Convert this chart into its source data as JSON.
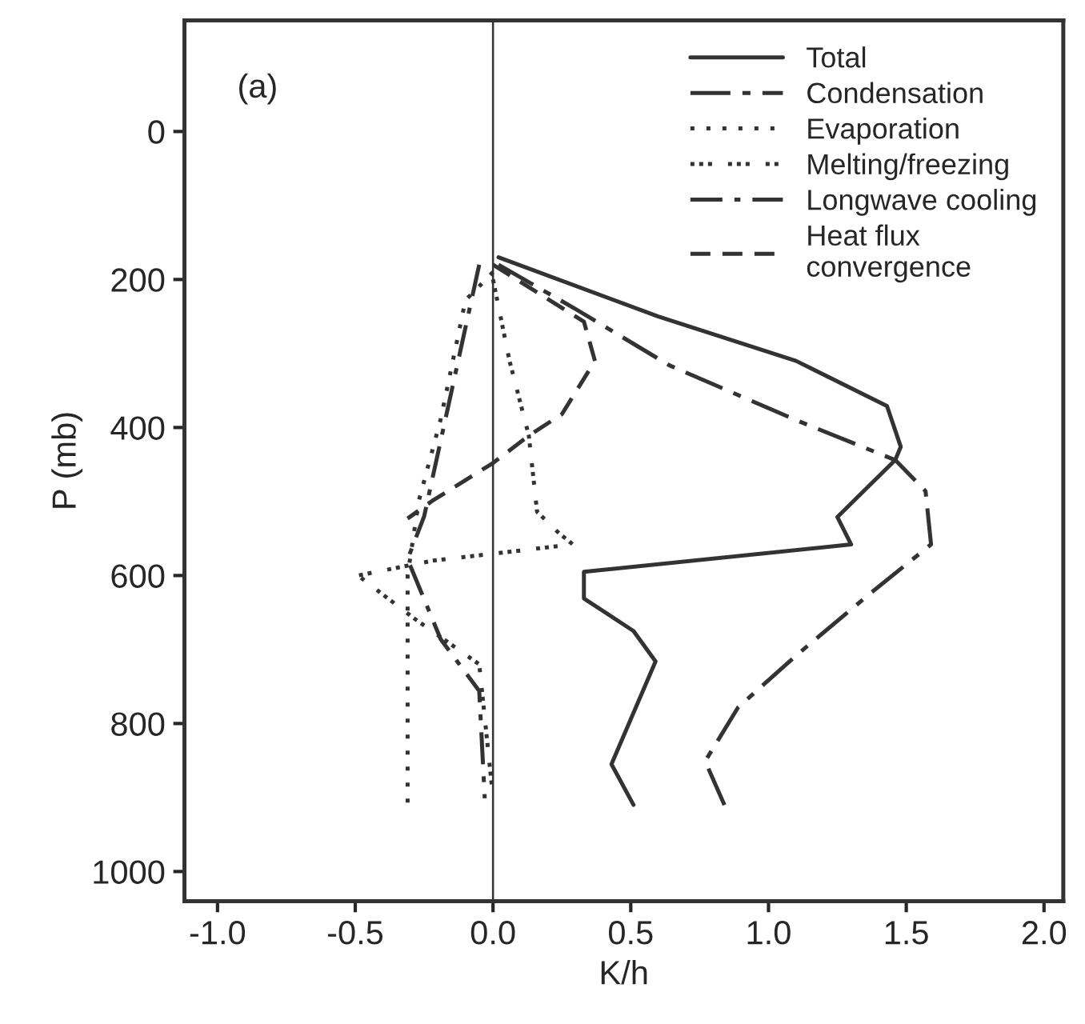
{
  "chart_data": {
    "type": "line",
    "xlabel": "K/h",
    "ylabel": "P (mb)",
    "annotations": [
      "(a)"
    ],
    "xlim": [
      -1.12,
      2.07
    ],
    "ylim": [
      1040,
      -150
    ],
    "xticks": [
      {
        "value": -1.0,
        "label": "-1.0"
      },
      {
        "value": -0.5,
        "label": "-0.5"
      },
      {
        "value": 0.0,
        "label": "0.0"
      },
      {
        "value": 0.5,
        "label": "0.5"
      },
      {
        "value": 1.0,
        "label": "1.0"
      },
      {
        "value": 1.5,
        "label": "1.5"
      },
      {
        "value": 2.0,
        "label": "2.0"
      }
    ],
    "yticks": [
      0,
      200,
      400,
      600,
      800,
      1000
    ],
    "grid": false,
    "legend": "top right",
    "ref_lines": [
      {
        "axis": "x",
        "value": 0,
        "color": "#333333",
        "line_style": "solid"
      }
    ],
    "series": [
      {
        "name": "Total",
        "color": "#333333",
        "line_style": "solid",
        "x": [
          0.02,
          0.6,
          1.1,
          1.43,
          1.48,
          1.46,
          1.25,
          1.3,
          0.33,
          0.33,
          0.51,
          0.59,
          0.43,
          0.51
        ],
        "values": [
          170,
          250,
          310,
          371,
          426,
          444,
          521,
          558,
          595,
          631,
          675,
          716,
          855,
          910
        ]
      },
      {
        "name": "Condensation",
        "color": "#333333",
        "line_style": "longdash",
        "x": [
          0.02,
          0.3,
          0.64,
          1.1,
          1.46,
          1.57,
          1.59,
          1.37,
          1.11,
          0.89,
          0.77,
          0.84
        ],
        "values": [
          180,
          240,
          316,
          390,
          444,
          486,
          558,
          624,
          705,
          778,
          851,
          910
        ]
      },
      {
        "name": "Evaporation",
        "color": "#333333",
        "line_style": "dotted",
        "x": [
          0.0,
          -0.1,
          -0.19,
          -0.27,
          -0.31,
          -0.31
        ],
        "values": [
          190,
          228,
          389,
          500,
          600,
          910
        ]
      },
      {
        "name": "Melting/freezing",
        "color": "#333333",
        "line_style": "densedot",
        "x": [
          0.0,
          0.06,
          0.13,
          0.16,
          0.24,
          0.29,
          -0.22,
          -0.49,
          -0.29,
          -0.05,
          0.0
        ],
        "values": [
          200,
          310,
          411,
          514,
          543,
          558,
          580,
          600,
          657,
          720,
          900
        ]
      },
      {
        "name": "Longwave cooling",
        "color": "#333333",
        "line_style": "dashdot",
        "x": [
          -0.05,
          -0.25,
          -0.31,
          -0.19,
          -0.05,
          -0.03
        ],
        "values": [
          180,
          520,
          578,
          686,
          756,
          901
        ]
      },
      {
        "name": "Heat flux\nconvergence",
        "color": "#333333",
        "line_style": "dashed",
        "x": [
          0.0,
          0.33,
          0.37,
          0.25,
          0.13,
          0.0,
          -0.22,
          -0.31
        ],
        "values": [
          180,
          257,
          310,
          382,
          411,
          448,
          499,
          523
        ]
      }
    ]
  }
}
